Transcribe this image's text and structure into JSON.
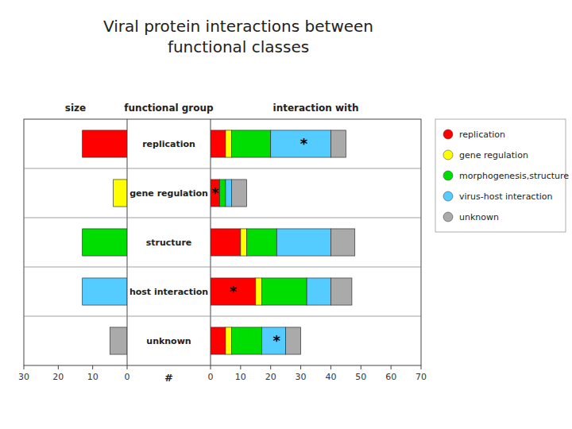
{
  "chart_data": [
    {
      "type": "bar",
      "orientation": "horizontal",
      "title": "Viral protein interactions between\nfunctional classes",
      "x_label": "size",
      "y_label": "functional group",
      "categories": [
        "replication",
        "gene regulation",
        "structure",
        "host interaction",
        "unknown"
      ],
      "values": [
        13,
        4,
        13,
        13,
        5
      ],
      "colors": [
        "#ff0000",
        "#ffff00",
        "#00dd00",
        "#55ccff",
        "#aaaaaa"
      ],
      "xlim": [
        30,
        0
      ],
      "xticks": [
        30,
        20,
        10,
        0
      ],
      "grid": false,
      "annotations": [
        {
          "text": "#"
        }
      ]
    },
    {
      "type": "bar",
      "orientation": "horizontal",
      "stacked": true,
      "x_label": "interaction with",
      "categories": [
        "replication",
        "gene regulation",
        "structure",
        "host interaction",
        "unknown"
      ],
      "series": [
        {
          "name": "replication",
          "color": "#ff0000",
          "values": [
            5,
            3,
            10,
            15,
            5
          ]
        },
        {
          "name": "gene regulation",
          "color": "#ffff00",
          "values": [
            2,
            null,
            2,
            2,
            2
          ]
        },
        {
          "name": "morphogenesis,structure",
          "color": "#00dd00",
          "values": [
            13,
            2,
            10,
            15,
            10
          ]
        },
        {
          "name": "virus-host interaction",
          "color": "#55ccff",
          "values": [
            20,
            2,
            18,
            8,
            8
          ]
        },
        {
          "name": "unknown",
          "color": "#aaaaaa",
          "values": [
            5,
            5,
            8,
            7,
            5
          ]
        }
      ],
      "xlim": [
        0,
        70
      ],
      "xticks": [
        0,
        10,
        20,
        30,
        40,
        50,
        60,
        70
      ],
      "grid": false,
      "legend": "right",
      "annotations": [
        {
          "text": "*",
          "x": 31,
          "category": "replication"
        },
        {
          "text": "*",
          "x": 1.5,
          "category": "gene regulation"
        },
        {
          "text": "*",
          "x": 7.5,
          "category": "host interaction"
        },
        {
          "text": "*",
          "x": 22,
          "category": "unknown"
        }
      ]
    }
  ]
}
